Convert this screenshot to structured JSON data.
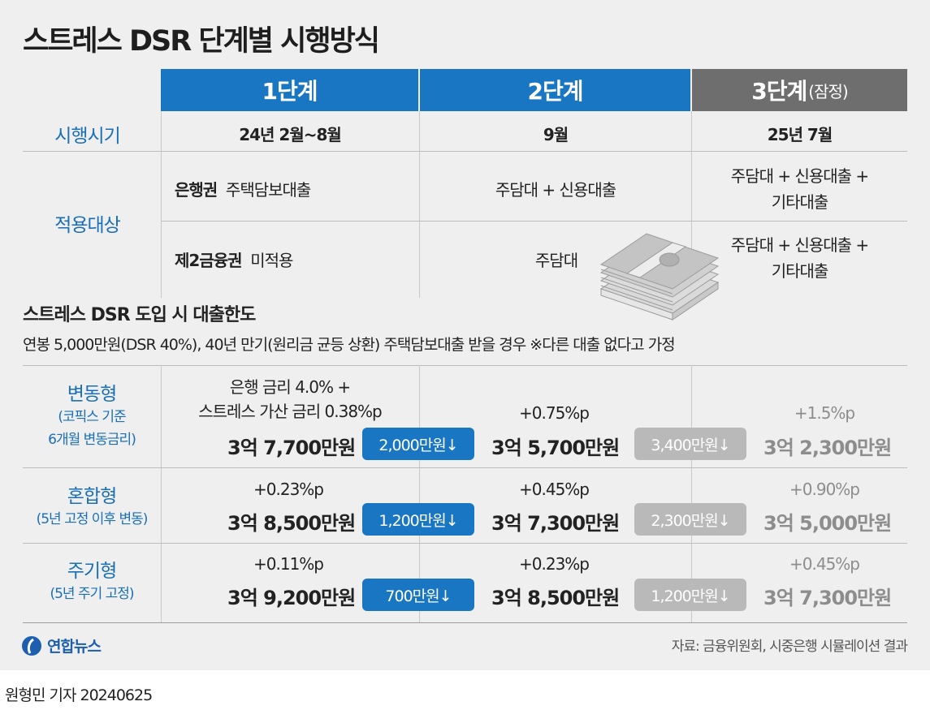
{
  "title": "스트레스 DSR 단계별 시행방식",
  "stages": [
    {
      "label": "1단계",
      "note": ""
    },
    {
      "label": "2단계",
      "note": ""
    },
    {
      "label": "3단계",
      "note": "(잠정)"
    }
  ],
  "schedule": {
    "row_label": "시행시기",
    "values": [
      "24년 2월~8월",
      "9월",
      "25년 7월"
    ]
  },
  "scope": {
    "row_label": "적용대상",
    "banks": {
      "name": "은행권",
      "stage1": "주택담보대출",
      "stage2": "주담대 + 신용대출",
      "stage3_line1": "주담대 + 신용대출 +",
      "stage3_line2": "기타대출"
    },
    "second_tier": {
      "name": "제2금융권",
      "stage1": "미적용",
      "stage2": "주담대",
      "stage3_line1": "주담대 + 신용대출 +",
      "stage3_line2": "기타대출"
    }
  },
  "loan_limit": {
    "section_title": "스트레스 DSR 도입 시 대출한도",
    "condition": "연봉 5,000만원(DSR 40%), 40년 만기(원리금 균등 상환) 주택담보대출 받을 경우   ※다른 대출 없다고 가정",
    "rows": [
      {
        "type": "변동형",
        "sub1": "(코픽스 기준",
        "sub2": "6개월 변동금리)",
        "s1_rate1": "은행 금리 4.0% +",
        "s1_rate2": "스트레스 가산 금리 0.38%p",
        "s1_amount": "3억 7,700만원",
        "s1_drop": "2,000만원↓",
        "s2_rate": "+0.75%p",
        "s2_amount": "3억 5,700만원",
        "s2_drop": "3,400만원↓",
        "s3_rate": "+1.5%p",
        "s3_amount": "3억 2,300만원"
      },
      {
        "type": "혼합형",
        "sub1": "(5년 고정 이후 변동)",
        "sub2": "",
        "s1_rate1": "+0.23%p",
        "s1_amount": "3억 8,500만원",
        "s1_drop": "1,200만원↓",
        "s2_rate": "+0.45%p",
        "s2_amount": "3억 7,300만원",
        "s2_drop": "2,300만원↓",
        "s3_rate": "+0.90%p",
        "s3_amount": "3억 5,000만원"
      },
      {
        "type": "주기형",
        "sub1": "(5년 주기 고정)",
        "sub2": "",
        "s1_rate1": "+0.11%p",
        "s1_amount": "3억 9,200만원",
        "s1_drop": "700만원↓",
        "s2_rate": "+0.23%p",
        "s2_amount": "3억 8,500만원",
        "s2_drop": "1,200만원↓",
        "s3_rate": "+0.45%p",
        "s3_amount": "3억 7,300만원"
      }
    ]
  },
  "logo": "연합뉴스",
  "source": "자료: 금융위원회, 시중은행 시뮬레이션 결과",
  "credit": "원형민 기자  20240625",
  "colors": {
    "accent_blue": "#1976c2",
    "stage3_gray": "#6e6e6e",
    "badge_gray": "#b9b9b9",
    "panel_bg": "#efefef"
  }
}
